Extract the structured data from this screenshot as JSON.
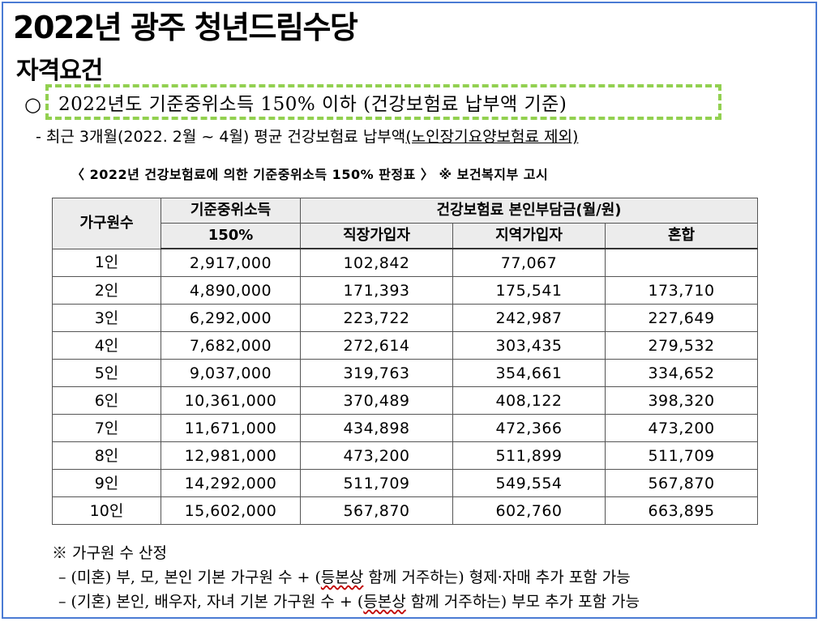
{
  "title": "2022년 광주 청년드림수당",
  "subtitle": "자격요건",
  "criteria": {
    "bullet": "○",
    "text": "2022년도 기준중위소득 150% 이하 (건강보험료 납부액 기준)"
  },
  "note": {
    "prefix": "- 최근 3개월(2022. 2월 ~ 4월) 평균 건강보험료 납부액",
    "underlined": "(노인장기요양보험료 제외)"
  },
  "table_caption": "〈 2022년 건강보험료에 의한 기준중위소득 150% 판정표 〉 ※ 보건복지부 고시",
  "table": {
    "headers": {
      "household": "가구원수",
      "income_line1": "기준중위소득",
      "income_line2": "150%",
      "premium_group": "건강보험료 본인부담금(월/원)",
      "employee": "직장가입자",
      "regional": "지역가입자",
      "mixed": "혼합"
    },
    "rows": [
      {
        "household": "1인",
        "income": "2,917,000",
        "employee": "102,842",
        "regional": "77,067",
        "mixed": ""
      },
      {
        "household": "2인",
        "income": "4,890,000",
        "employee": "171,393",
        "regional": "175,541",
        "mixed": "173,710"
      },
      {
        "household": "3인",
        "income": "6,292,000",
        "employee": "223,722",
        "regional": "242,987",
        "mixed": "227,649"
      },
      {
        "household": "4인",
        "income": "7,682,000",
        "employee": "272,614",
        "regional": "303,435",
        "mixed": "279,532"
      },
      {
        "household": "5인",
        "income": "9,037,000",
        "employee": "319,763",
        "regional": "354,661",
        "mixed": "334,652"
      },
      {
        "household": "6인",
        "income": "10,361,000",
        "employee": "370,489",
        "regional": "408,122",
        "mixed": "398,320"
      },
      {
        "household": "7인",
        "income": "11,671,000",
        "employee": "434,898",
        "regional": "472,366",
        "mixed": "473,200"
      },
      {
        "household": "8인",
        "income": "12,981,000",
        "employee": "473,200",
        "regional": "511,899",
        "mixed": "511,709"
      },
      {
        "household": "9인",
        "income": "14,292,000",
        "employee": "511,709",
        "regional": "549,554",
        "mixed": "567,870"
      },
      {
        "household": "10인",
        "income": "15,602,000",
        "employee": "567,870",
        "regional": "602,760",
        "mixed": "663,895"
      }
    ]
  },
  "footnotes": {
    "heading": "※ 가구원 수 산정",
    "single_prefix": "– (미혼) 부, 모, 본인 기본 가구원 수 + (",
    "single_wavy": "등본상",
    "single_suffix": " 함께 거주하는) 형제·자매 추가 포함 가능",
    "married_prefix": "– (기혼) 본인, 배우자, 자녀 기본 가구원 수 + (",
    "married_wavy": "등본상",
    "married_suffix": " 함께 거주하는) 부모 추가 포함 가능"
  }
}
